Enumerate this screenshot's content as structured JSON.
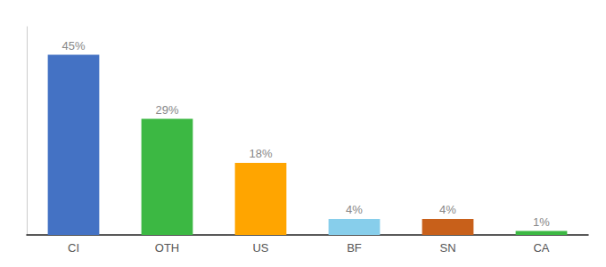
{
  "chart_data": {
    "type": "bar",
    "categories": [
      "CI",
      "OTH",
      "US",
      "BF",
      "SN",
      "CA"
    ],
    "values": [
      45,
      29,
      18,
      4,
      4,
      1
    ],
    "value_labels": [
      "45%",
      "29%",
      "18%",
      "4%",
      "4%",
      "1%"
    ],
    "colors": [
      "#4472C4",
      "#3CB843",
      "#FFA500",
      "#87CEEB",
      "#C8601A",
      "#3CB843"
    ],
    "ylim": [
      0,
      52
    ],
    "data_labels": true,
    "tick_labels": "x",
    "grid": false
  }
}
